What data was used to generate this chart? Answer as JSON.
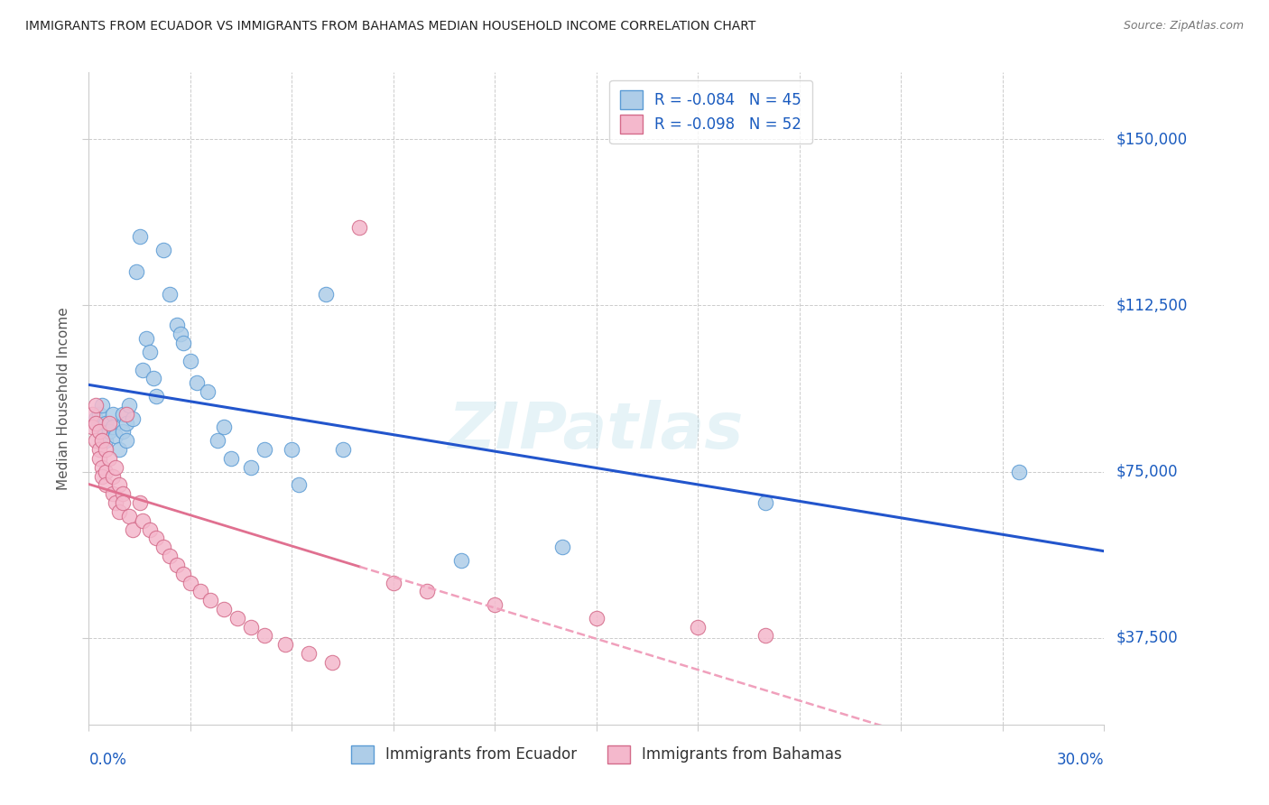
{
  "title": "IMMIGRANTS FROM ECUADOR VS IMMIGRANTS FROM BAHAMAS MEDIAN HOUSEHOLD INCOME CORRELATION CHART",
  "source": "Source: ZipAtlas.com",
  "ylabel": "Median Household Income",
  "yticks": [
    37500,
    75000,
    112500,
    150000
  ],
  "ytick_labels": [
    "$37,500",
    "$75,000",
    "$112,500",
    "$150,000"
  ],
  "xmin": 0.0,
  "xmax": 0.3,
  "ymin": 18000,
  "ymax": 165000,
  "ecuador_color": "#aecde8",
  "ecuador_edge": "#5b9bd5",
  "bahamas_color": "#f4b8cc",
  "bahamas_edge": "#d46b8a",
  "trend_ecuador_color": "#2255cc",
  "trend_bahamas_color_solid": "#e07090",
  "trend_bahamas_color_dash": "#f0a0bc",
  "ecuador_R": -0.084,
  "ecuador_N": 45,
  "bahamas_R": -0.098,
  "bahamas_N": 52,
  "ecuador_label": "Immigrants from Ecuador",
  "bahamas_label": "Immigrants from Bahamas",
  "ecuador_x": [
    0.002,
    0.003,
    0.004,
    0.004,
    0.005,
    0.005,
    0.006,
    0.007,
    0.007,
    0.008,
    0.009,
    0.01,
    0.01,
    0.011,
    0.011,
    0.012,
    0.013,
    0.014,
    0.015,
    0.016,
    0.017,
    0.018,
    0.019,
    0.02,
    0.022,
    0.024,
    0.026,
    0.027,
    0.028,
    0.03,
    0.032,
    0.035,
    0.038,
    0.04,
    0.042,
    0.048,
    0.052,
    0.06,
    0.062,
    0.07,
    0.075,
    0.11,
    0.14,
    0.2,
    0.275
  ],
  "ecuador_y": [
    87000,
    88000,
    85000,
    90000,
    82000,
    86000,
    84000,
    88000,
    85000,
    83000,
    80000,
    84000,
    88000,
    86000,
    82000,
    90000,
    87000,
    120000,
    128000,
    98000,
    105000,
    102000,
    96000,
    92000,
    125000,
    115000,
    108000,
    106000,
    104000,
    100000,
    95000,
    93000,
    82000,
    85000,
    78000,
    76000,
    80000,
    80000,
    72000,
    115000,
    80000,
    55000,
    58000,
    68000,
    75000
  ],
  "bahamas_x": [
    0.001,
    0.001,
    0.002,
    0.002,
    0.002,
    0.003,
    0.003,
    0.003,
    0.004,
    0.004,
    0.004,
    0.005,
    0.005,
    0.005,
    0.006,
    0.006,
    0.007,
    0.007,
    0.008,
    0.008,
    0.009,
    0.009,
    0.01,
    0.01,
    0.011,
    0.012,
    0.013,
    0.015,
    0.016,
    0.018,
    0.02,
    0.022,
    0.024,
    0.026,
    0.028,
    0.03,
    0.033,
    0.036,
    0.04,
    0.044,
    0.048,
    0.052,
    0.058,
    0.065,
    0.072,
    0.08,
    0.09,
    0.1,
    0.12,
    0.15,
    0.18,
    0.2
  ],
  "bahamas_y": [
    88000,
    85000,
    90000,
    86000,
    82000,
    84000,
    80000,
    78000,
    82000,
    76000,
    74000,
    80000,
    75000,
    72000,
    78000,
    86000,
    74000,
    70000,
    76000,
    68000,
    72000,
    66000,
    70000,
    68000,
    88000,
    65000,
    62000,
    68000,
    64000,
    62000,
    60000,
    58000,
    56000,
    54000,
    52000,
    50000,
    48000,
    46000,
    44000,
    42000,
    40000,
    38000,
    36000,
    34000,
    32000,
    130000,
    50000,
    48000,
    45000,
    42000,
    40000,
    38000
  ]
}
